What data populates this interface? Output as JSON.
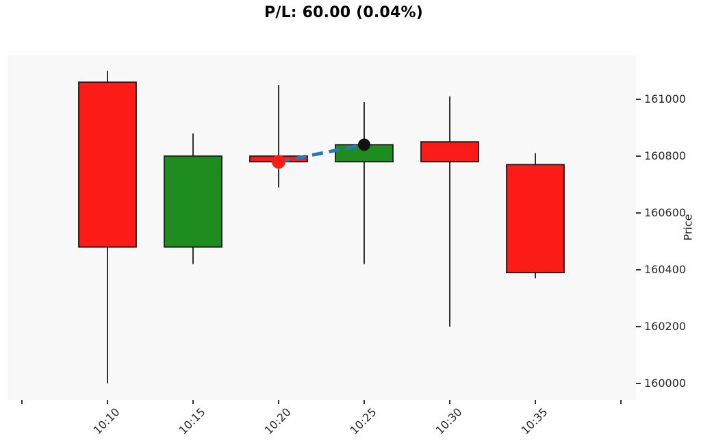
{
  "title": "P/L: 60.00 (0.04%)",
  "chart_data": {
    "type": "candlestick",
    "title": "P/L: 60.00 (0.04%)",
    "ylabel": "Price",
    "x_labels": [
      "10:10",
      "10:15",
      "10:20",
      "10:25",
      "10:30",
      "10:35"
    ],
    "y_ticks": [
      160000,
      160200,
      160400,
      160600,
      160800,
      161000
    ],
    "ylim": [
      159942,
      161154
    ],
    "grid": false,
    "candles": [
      {
        "time": "10:10",
        "open": 161060,
        "high": 161100,
        "low": 160000,
        "close": 160480
      },
      {
        "time": "10:15",
        "open": 160480,
        "high": 160880,
        "low": 160420,
        "close": 160800
      },
      {
        "time": "10:20",
        "open": 160800,
        "high": 161050,
        "low": 160690,
        "close": 160780
      },
      {
        "time": "10:25",
        "open": 160780,
        "high": 160990,
        "low": 160420,
        "close": 160840
      },
      {
        "time": "10:30",
        "open": 160850,
        "high": 161010,
        "low": 160200,
        "close": 160780
      },
      {
        "time": "10:35",
        "open": 160770,
        "high": 160810,
        "low": 160370,
        "close": 160390
      }
    ],
    "trade": {
      "entry": {
        "time": "10:20",
        "price": 160780
      },
      "exit": {
        "time": "10:25",
        "price": 160840
      },
      "pl_value": "60.00",
      "pl_percent": "0.04%"
    },
    "colors": {
      "up": "#1e8c1e",
      "down": "#fb1b17",
      "wick": "#1a1a1a",
      "body_outline": "#1a1a1a",
      "entry_marker": "#fb1b17",
      "exit_marker": "#111111",
      "trade_line": "#2878b4",
      "plot_bg": "#f8f8f8"
    }
  }
}
